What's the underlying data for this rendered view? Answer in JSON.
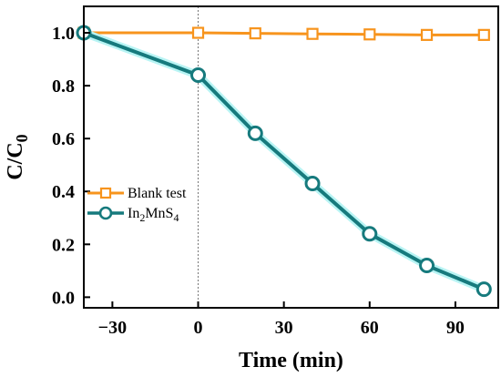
{
  "chart_data": {
    "type": "line",
    "xlabel": "Time (min)",
    "ylabel": "C/C",
    "ylabel_sub": "0",
    "xlim": [
      -40,
      105
    ],
    "ylim": [
      -0.04,
      1.1
    ],
    "xticks": [
      -30,
      0,
      30,
      60,
      90
    ],
    "yticks": [
      0.0,
      0.2,
      0.4,
      0.6,
      0.8,
      1.0
    ],
    "xtick_labels": [
      "−30",
      "0",
      "30",
      "60",
      "90"
    ],
    "ytick_labels": [
      "0.0",
      "0.2",
      "0.4",
      "0.6",
      "0.8",
      "1.0"
    ],
    "reference_line_x": 0,
    "legend_position": "center-left",
    "series": [
      {
        "name": "Blank test",
        "color": "#f7941d",
        "marker": "square",
        "x": [
          -40,
          0,
          20,
          40,
          60,
          80,
          100
        ],
        "y": [
          1.0,
          1.0,
          0.998,
          0.996,
          0.994,
          0.992,
          0.992
        ]
      },
      {
        "name": "In2MnS4",
        "name_parts": [
          "In",
          "2",
          "MnS",
          "4"
        ],
        "color": "#167a7d",
        "glow": "#b8f4f4",
        "marker": "circle",
        "x": [
          -40,
          0,
          20,
          40,
          60,
          80,
          100
        ],
        "y": [
          1.0,
          0.84,
          0.62,
          0.43,
          0.24,
          0.12,
          0.03
        ]
      }
    ]
  }
}
